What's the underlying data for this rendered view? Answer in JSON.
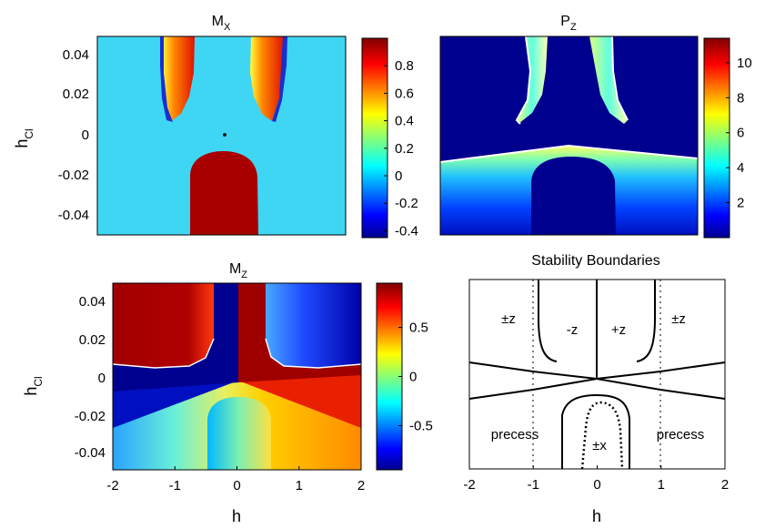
{
  "chart_data": [
    {
      "id": "mx",
      "type": "heatmap",
      "title": "M",
      "title_sub": "X",
      "xlabel": "",
      "ylabel": "h",
      "ylabel_sub": "Cl",
      "xlim": [
        -2,
        2
      ],
      "ylim": [
        -0.05,
        0.05
      ],
      "yticks": [
        "0.04",
        "0.02",
        "0",
        "-0.02",
        "-0.04"
      ],
      "yticks_values": [
        0.04,
        0.02,
        0,
        -0.02,
        -0.04
      ],
      "colorbar": {
        "range": [
          -0.45,
          1.0
        ],
        "ticks": [
          "0.8",
          "0.6",
          "0.4",
          "0.2",
          "0",
          "-0.2",
          "-0.4"
        ],
        "ticks_values": [
          0.8,
          0.6,
          0.4,
          0.2,
          0,
          -0.2,
          -0.4
        ]
      },
      "colors": {
        "background": "#3fd6f4",
        "dark_red": "#a80000"
      }
    },
    {
      "id": "pz",
      "type": "heatmap",
      "title": "P",
      "title_sub": "Z",
      "xlim": [
        -2,
        2
      ],
      "ylim": [
        -0.05,
        0.05
      ],
      "colorbar": {
        "range": [
          0,
          11.4
        ],
        "ticks": [
          "10",
          "8",
          "6",
          "4",
          "2"
        ],
        "ticks_values": [
          10,
          8,
          6,
          4,
          2
        ]
      },
      "colors": {
        "background": "#00008f"
      }
    },
    {
      "id": "mz",
      "type": "heatmap",
      "title": "M",
      "title_sub": "Z",
      "xlabel": "h",
      "ylabel": "h",
      "ylabel_sub": "Cl",
      "xlim": [
        -2,
        2
      ],
      "ylim": [
        -0.05,
        0.05
      ],
      "xticks": [
        "-2",
        "-1",
        "0",
        "1",
        "2"
      ],
      "xticks_values": [
        -2,
        -1,
        0,
        1,
        2
      ],
      "yticks": [
        "0.04",
        "0.02",
        "0",
        "-0.02",
        "-0.04"
      ],
      "yticks_values": [
        0.04,
        0.02,
        0,
        -0.02,
        -0.04
      ],
      "colorbar": {
        "range": [
          -0.95,
          0.95
        ],
        "ticks": [
          "0.5",
          "0",
          "-0.5"
        ],
        "ticks_values": [
          0.5,
          0,
          -0.5
        ]
      },
      "colors": {
        "dark_red": "#9e0000",
        "dark_blue": "#00008f"
      }
    },
    {
      "id": "stability",
      "type": "line",
      "title": "Stability Boundaries",
      "xlabel": "h",
      "xlim": [
        -2,
        2
      ],
      "ylim": [
        -0.05,
        0.05
      ],
      "xticks": [
        "-2",
        "-1",
        "0",
        "1",
        "2"
      ],
      "xticks_values": [
        -2,
        -1,
        0,
        1,
        2
      ],
      "region_labels": [
        "±z",
        "-z",
        "+z",
        "±z",
        "precess",
        "±x",
        "precess"
      ]
    }
  ]
}
